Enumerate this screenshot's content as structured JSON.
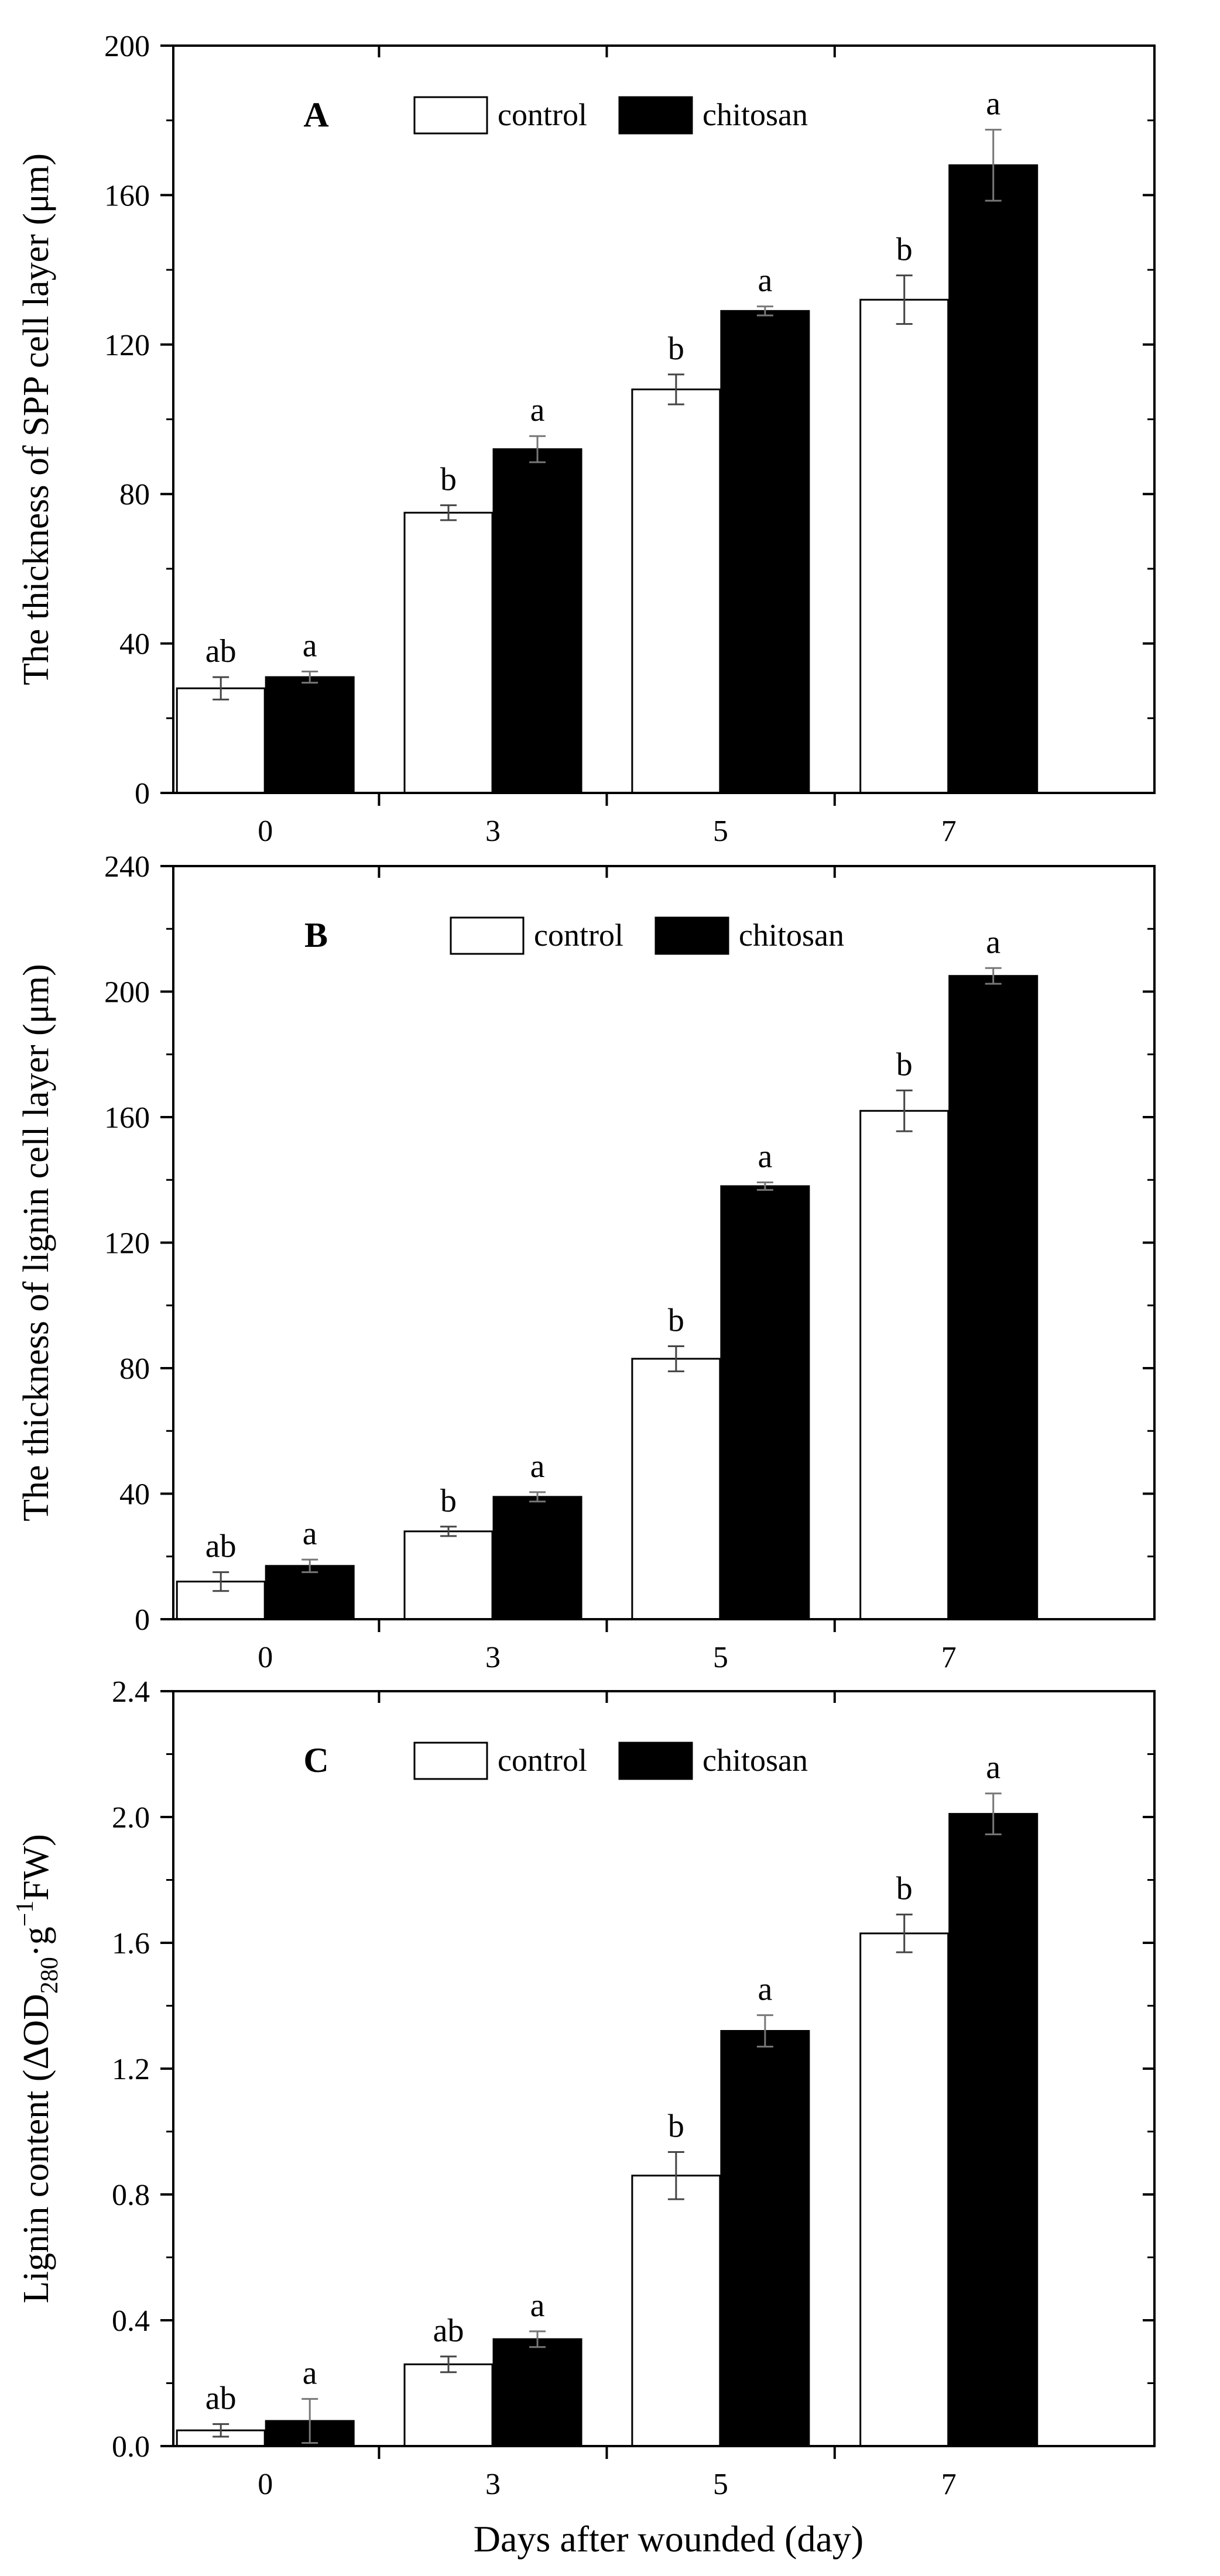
{
  "figure": {
    "xlabel": "Days after wounded (day)",
    "legend": {
      "control": "control",
      "chitosan": "chitosan"
    },
    "colors": {
      "control": "#ffffff",
      "chitosan": "#000000",
      "axis": "#000000"
    }
  },
  "chart_data": [
    {
      "type": "bar",
      "panel": "A",
      "ylabel": "The thickness of SPP cell layer (μm)",
      "categories": [
        "0",
        "3",
        "5",
        "7"
      ],
      "ylim": [
        0,
        200
      ],
      "yticks": [
        "0",
        "40",
        "80",
        "120",
        "160",
        "200"
      ],
      "series": [
        {
          "name": "control",
          "values": [
            28,
            75,
            108,
            132
          ],
          "errors": [
            3,
            2,
            4,
            6.5
          ],
          "labels": [
            "ab",
            "b",
            "b",
            "b"
          ]
        },
        {
          "name": "chitosan",
          "values": [
            31,
            92,
            129,
            168
          ],
          "errors": [
            1.5,
            3.5,
            1.2,
            9.5
          ],
          "labels": [
            "a",
            "a",
            "a",
            "a"
          ]
        }
      ]
    },
    {
      "type": "bar",
      "panel": "B",
      "ylabel": "The thickness of lignin cell layer (μm)",
      "categories": [
        "0",
        "3",
        "5",
        "7"
      ],
      "ylim": [
        0,
        240
      ],
      "yticks": [
        "0",
        "40",
        "80",
        "120",
        "160",
        "200",
        "240"
      ],
      "series": [
        {
          "name": "control",
          "values": [
            12,
            28,
            83,
            162
          ],
          "errors": [
            3,
            1.5,
            4,
            6.5
          ],
          "labels": [
            "ab",
            "b",
            "b",
            "b"
          ]
        },
        {
          "name": "chitosan",
          "values": [
            17,
            39,
            138,
            205
          ],
          "errors": [
            2,
            1.5,
            1.2,
            2.5
          ],
          "labels": [
            "a",
            "a",
            "a",
            "a"
          ]
        }
      ]
    },
    {
      "type": "bar",
      "panel": "C",
      "ylabel": "Lignin content (ΔOD",
      "ylabel_sub": "280",
      "ylabel_mid": "·g",
      "ylabel_sup": "−1",
      "ylabel_end": "FW)",
      "categories": [
        "0",
        "3",
        "5",
        "7"
      ],
      "ylim": [
        0,
        2.4
      ],
      "yticks": [
        "0.0",
        "0.4",
        "0.8",
        "1.2",
        "1.6",
        "2.0",
        "2.4"
      ],
      "series": [
        {
          "name": "control",
          "values": [
            0.05,
            0.26,
            0.86,
            1.63
          ],
          "errors": [
            0.02,
            0.025,
            0.075,
            0.06
          ],
          "labels": [
            "ab",
            "ab",
            "b",
            "b"
          ]
        },
        {
          "name": "chitosan",
          "values": [
            0.08,
            0.34,
            1.32,
            2.01
          ],
          "errors": [
            0.07,
            0.025,
            0.05,
            0.065
          ],
          "labels": [
            "a",
            "a",
            "a",
            "a"
          ]
        }
      ]
    }
  ]
}
